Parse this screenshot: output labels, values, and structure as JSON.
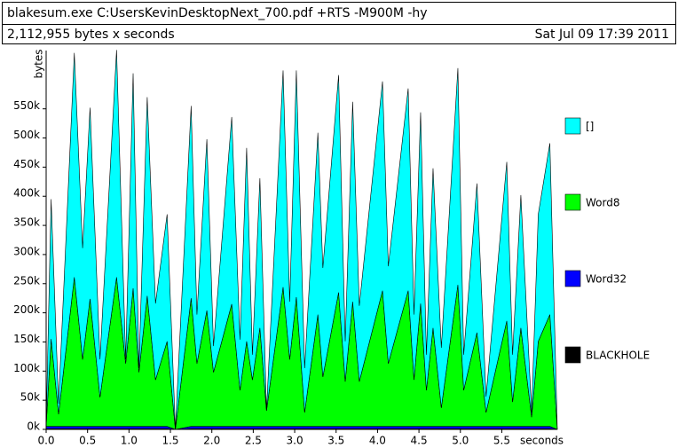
{
  "chart_data": {
    "type": "stacked_area",
    "title": "blakesum.exe C:UsersKevinDesktopNext_700.pdf +RTS -M900M -hy",
    "subtitle": "2,112,955 bytes x seconds",
    "date": "Sat Jul 09 17:39 2011",
    "y_label": "bytes",
    "x_label": "seconds",
    "x": [
      0.0,
      0.06,
      0.15,
      0.34,
      0.44,
      0.53,
      0.65,
      0.85,
      0.96,
      1.05,
      1.12,
      1.22,
      1.32,
      1.46,
      1.56,
      1.75,
      1.82,
      1.94,
      2.02,
      2.24,
      2.34,
      2.42,
      2.49,
      2.58,
      2.66,
      2.86,
      2.94,
      3.02,
      3.12,
      3.28,
      3.34,
      3.53,
      3.61,
      3.7,
      3.78,
      4.06,
      4.13,
      4.37,
      4.44,
      4.52,
      4.59,
      4.67,
      4.77,
      4.97,
      5.04,
      5.2,
      5.31,
      5.56,
      5.63,
      5.73,
      5.86,
      5.94,
      6.08,
      6.17
    ],
    "series": [
      {
        "name": "[]",
        "color": "#00ffff",
        "values": [
          0,
          240000,
          18000,
          385000,
          191000,
          328000,
          65000,
          390000,
          7000,
          369000,
          7000,
          341000,
          131000,
          218000,
          0,
          330000,
          84000,
          294000,
          45000,
          321000,
          87000,
          332000,
          43000,
          257000,
          0,
          372000,
          99000,
          389000,
          76000,
          312000,
          187000,
          373000,
          69000,
          343000,
          130000,
          359000,
          167000,
          347000,
          112000,
          328000,
          61000,
          274000,
          103000,
          372000,
          61000,
          256000,
          27000,
          273000,
          81000,
          228000,
          8000,
          218000,
          294000,
          0
        ]
      },
      {
        "name": "Word8",
        "color": "#00ff00",
        "values": [
          1000,
          150000,
          21000,
          256000,
          115000,
          219000,
          50000,
          256000,
          108000,
          237000,
          93000,
          224000,
          80000,
          146000,
          0,
          220000,
          108000,
          199000,
          93000,
          210000,
          62000,
          146000,
          80000,
          169000,
          27000,
          239000,
          115000,
          222000,
          24000,
          192000,
          85000,
          230000,
          77000,
          214000,
          77000,
          233000,
          108000,
          233000,
          80000,
          211000,
          62000,
          169000,
          32000,
          243000,
          62000,
          161000,
          24000,
          181000,
          42000,
          169000,
          16000,
          146000,
          192000,
          0
        ]
      },
      {
        "name": "Word32",
        "color": "#0000ff",
        "values": [
          4000,
          4000,
          4000,
          4000,
          4000,
          4000,
          4000,
          4000,
          4000,
          4000,
          4000,
          4000,
          4000,
          4000,
          0,
          4000,
          4000,
          4000,
          4000,
          4000,
          4000,
          4000,
          4000,
          4000,
          4000,
          4000,
          4000,
          4000,
          4000,
          4000,
          4000,
          4000,
          4000,
          4000,
          4000,
          4000,
          4000,
          4000,
          4000,
          4000,
          4000,
          4000,
          4000,
          4000,
          4000,
          4000,
          4000,
          4000,
          4000,
          4000,
          4000,
          4000,
          4000,
          0
        ]
      },
      {
        "name": "BLACKHOLE",
        "color": "#000000",
        "values": [
          1000,
          1000,
          1000,
          1000,
          1000,
          1000,
          1000,
          1000,
          1000,
          1000,
          1000,
          1000,
          1000,
          1000,
          0,
          1000,
          1000,
          1000,
          1000,
          1000,
          1000,
          1000,
          1000,
          1000,
          1000,
          1000,
          1000,
          1000,
          1000,
          1000,
          1000,
          1000,
          1000,
          1000,
          1000,
          1000,
          1000,
          1000,
          1000,
          1000,
          1000,
          1000,
          1000,
          1000,
          1000,
          1000,
          1000,
          1000,
          1000,
          1000,
          1000,
          1000,
          1000,
          0
        ]
      }
    ],
    "xlim": [
      0,
      6.17
    ],
    "ylim": [
      0,
      650000
    ],
    "xticks": [
      {
        "value": 0,
        "label": "0.0"
      },
      0.5,
      {
        "value": 1,
        "label": "1.0"
      },
      1.5,
      {
        "value": 2,
        "label": "2.0"
      },
      2.5,
      {
        "value": 3,
        "label": "3.0"
      },
      3.5,
      {
        "value": 4,
        "label": "4.0"
      },
      4.5,
      {
        "value": 5,
        "label": "5.0"
      },
      5.5
    ],
    "yticks": [
      {
        "value": 0,
        "label": "0k"
      },
      {
        "value": 50000,
        "label": "50k"
      },
      {
        "value": 100000,
        "label": "100k"
      },
      {
        "value": 150000,
        "label": "150k"
      },
      {
        "value": 200000,
        "label": "200k"
      },
      {
        "value": 250000,
        "label": "250k"
      },
      {
        "value": 300000,
        "label": "300k"
      },
      {
        "value": 350000,
        "label": "350k"
      },
      {
        "value": 400000,
        "label": "400k"
      },
      {
        "value": 450000,
        "label": "450k"
      },
      {
        "value": 500000,
        "label": "500k"
      },
      {
        "value": 550000,
        "label": "550k"
      }
    ],
    "legend": "right"
  }
}
